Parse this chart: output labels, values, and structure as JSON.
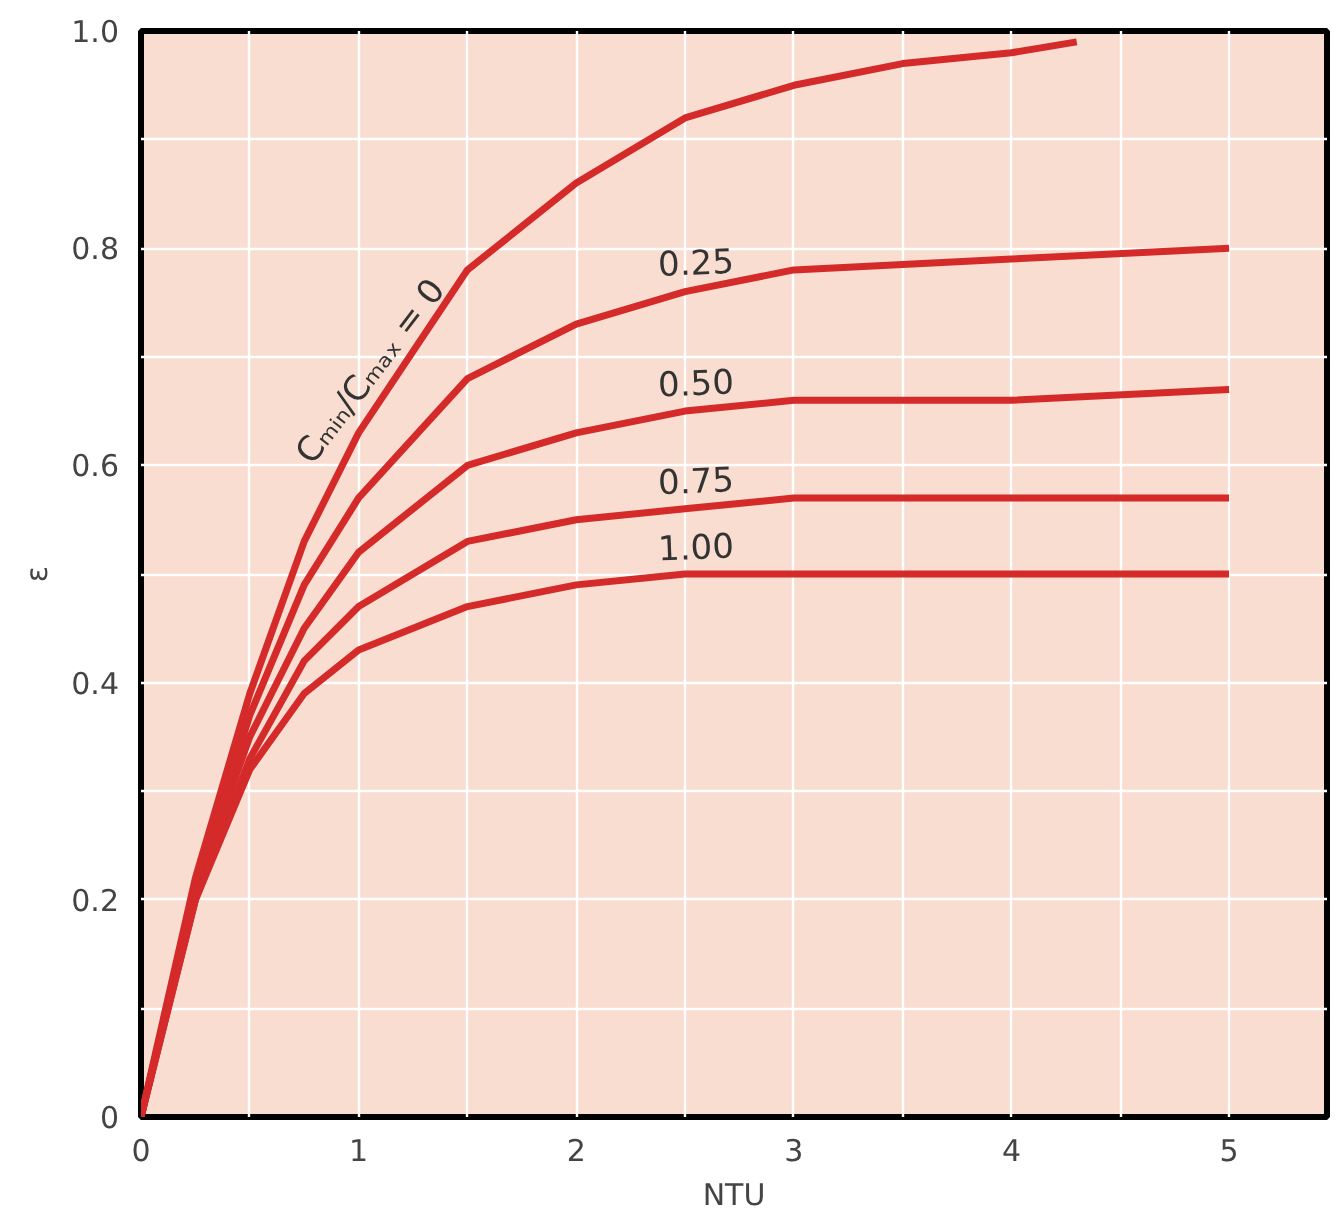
{
  "chart_data": {
    "type": "line",
    "xlabel": "NTU",
    "ylabel": "ε",
    "xlim": [
      0,
      5.45
    ],
    "ylim": [
      0,
      1.0
    ],
    "xticks": [
      0,
      {
        "value": 0.5,
        "label": null
      },
      1,
      {
        "value": 1.5,
        "label": null
      },
      2,
      {
        "value": 2.5,
        "label": null
      },
      3,
      {
        "value": 3.5,
        "label": null
      },
      4,
      {
        "value": 4.5,
        "label": null
      },
      5
    ],
    "yticks": [
      0,
      {
        "value": 0.1,
        "label": null
      },
      0.2,
      {
        "value": 0.3,
        "label": null
      },
      0.4,
      {
        "value": 0.5,
        "label": null
      },
      0.6,
      {
        "value": 0.7,
        "label": null
      },
      0.8,
      {
        "value": 0.9,
        "label": null
      },
      {
        "value": 1.0,
        "label": "1.0"
      }
    ],
    "grid": true,
    "marker": "none",
    "line_style": "solid",
    "series": [
      {
        "name": "Cₘᵢₙ/Cₘₐₓ = 0",
        "color": "#d42a2a",
        "x": [
          0,
          0.25,
          0.5,
          0.75,
          1,
          1.5,
          2,
          2.5,
          3,
          3.5,
          4,
          4.3
        ],
        "values": [
          0,
          0.22,
          0.39,
          0.53,
          0.63,
          0.78,
          0.86,
          0.92,
          0.95,
          0.97,
          0.98,
          0.99
        ]
      },
      {
        "name": "0.25",
        "color": "#d42a2a",
        "x": [
          0,
          0.25,
          0.5,
          0.75,
          1,
          1.5,
          2,
          2.5,
          3,
          4,
          5
        ],
        "values": [
          0,
          0.21,
          0.37,
          0.49,
          0.57,
          0.68,
          0.73,
          0.76,
          0.78,
          0.79,
          0.8
        ]
      },
      {
        "name": "0.50",
        "color": "#d42a2a",
        "x": [
          0,
          0.25,
          0.5,
          0.75,
          1,
          1.5,
          2,
          2.5,
          3,
          4,
          5
        ],
        "values": [
          0,
          0.21,
          0.35,
          0.45,
          0.52,
          0.6,
          0.63,
          0.65,
          0.66,
          0.66,
          0.67
        ]
      },
      {
        "name": "0.75",
        "color": "#d42a2a",
        "x": [
          0,
          0.25,
          0.5,
          0.75,
          1,
          1.5,
          2,
          2.5,
          3,
          4,
          5
        ],
        "values": [
          0,
          0.2,
          0.33,
          0.42,
          0.47,
          0.53,
          0.55,
          0.56,
          0.57,
          0.57,
          0.57
        ]
      },
      {
        "name": "1.00",
        "color": "#d42a2a",
        "x": [
          0,
          0.25,
          0.5,
          0.75,
          1,
          1.5,
          2,
          2.5,
          3,
          4,
          5
        ],
        "values": [
          0,
          0.2,
          0.32,
          0.39,
          0.43,
          0.47,
          0.49,
          0.5,
          0.5,
          0.5,
          0.5
        ]
      }
    ]
  }
}
